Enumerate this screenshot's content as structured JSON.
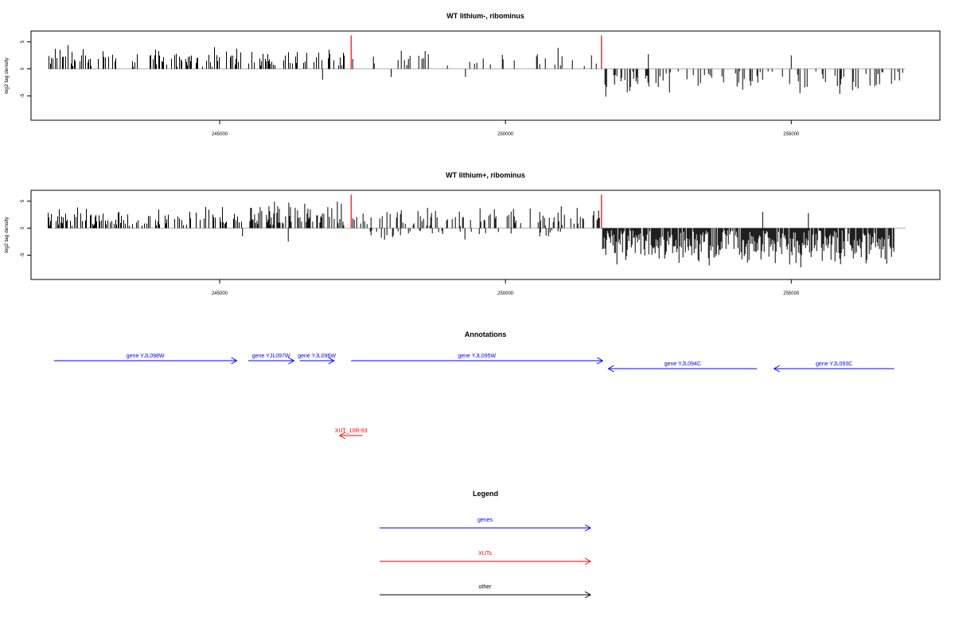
{
  "chart_data": [
    {
      "type": "bar",
      "title": "WT lithium-, ribominus",
      "xlabel": "",
      "ylabel": "log2 tag density",
      "xlim": [
        241700,
        257600
      ],
      "ylim": [
        -9.5,
        7
      ],
      "x_ticks": [
        245000,
        250000,
        255000
      ],
      "y_ticks": [
        -5,
        0,
        5
      ],
      "series": [
        {
          "segments": [
            {
              "from": 242000,
              "to": 246800,
              "sign": 1,
              "max": 4.5,
              "density": 0.32
            },
            {
              "from": 246900,
              "to": 247200,
              "sign": 1,
              "max": 4.2,
              "density": 0.25
            },
            {
              "from": 247300,
              "to": 251700,
              "sign": 1,
              "max": 4.0,
              "density": 0.1
            },
            {
              "from": 251700,
              "to": 257000,
              "sign": -1,
              "max": 5.5,
              "density": 0.24
            }
          ],
          "notable_negative": [
            {
              "x": 246800,
              "y": -2.0
            },
            {
              "x": 248000,
              "y": -1.5
            },
            {
              "x": 249300,
              "y": -1.5
            }
          ],
          "notable_positive": [
            {
              "x": 252500,
              "y": 2.7
            },
            {
              "x": 255000,
              "y": 2.5
            }
          ]
        }
      ],
      "highlights": [
        {
          "x": 247300,
          "y": 6.2,
          "color": "#ff0000"
        },
        {
          "x": 251680,
          "y": 6.2,
          "color": "#ff0000"
        }
      ]
    },
    {
      "type": "bar",
      "title": "WT lithium+, ribominus",
      "xlabel": "",
      "ylabel": "log2 tag density",
      "xlim": [
        241700,
        257600
      ],
      "ylim": [
        -9.5,
        7
      ],
      "x_ticks": [
        245000,
        250000,
        255000
      ],
      "y_ticks": [
        -5,
        0,
        5
      ],
      "series": [
        {
          "segments": [
            {
              "from": 242000,
              "to": 245400,
              "sign": 1,
              "max": 4.5,
              "density": 0.34
            },
            {
              "from": 245500,
              "to": 247200,
              "sign": 1,
              "max": 6.0,
              "density": 0.45
            },
            {
              "from": 247300,
              "to": 251700,
              "sign": 1,
              "max": 4.5,
              "density": 0.3
            },
            {
              "from": 247300,
              "to": 251000,
              "sign": -1,
              "max": 2.5,
              "density": 0.12
            },
            {
              "from": 251700,
              "to": 256800,
              "sign": -1,
              "max": 7.5,
              "density": 0.85
            }
          ],
          "notable_negative": [
            {
              "x": 245400,
              "y": -1.5
            },
            {
              "x": 246200,
              "y": -2.5
            }
          ],
          "notable_positive": [
            {
              "x": 254500,
              "y": 3.0
            },
            {
              "x": 255300,
              "y": 2.8
            }
          ]
        }
      ],
      "highlights": [
        {
          "x": 247300,
          "y": 6.2,
          "color": "#ff0000"
        },
        {
          "x": 251680,
          "y": 6.2,
          "color": "#ff0000"
        }
      ]
    }
  ],
  "annotations": {
    "title": "Annotations",
    "items": [
      {
        "label": "gene YJL098W",
        "start": 242100,
        "end": 245300,
        "strand": "+",
        "row": 0,
        "color": "#0000ff"
      },
      {
        "label": "gene YJL097W",
        "start": 245500,
        "end": 246300,
        "strand": "+",
        "row": 0,
        "color": "#0000ff"
      },
      {
        "label": "gene YJL096W",
        "start": 246400,
        "end": 247000,
        "strand": "+",
        "row": 0,
        "color": "#0000ff"
      },
      {
        "label": "gene YJL095W",
        "start": 247300,
        "end": 251700,
        "strand": "+",
        "row": 0,
        "color": "#0000ff"
      },
      {
        "label": "gene YJL094C",
        "start": 251800,
        "end": 254400,
        "strand": "-",
        "row": 1,
        "color": "#0000ff"
      },
      {
        "label": "gene YJL093C",
        "start": 254700,
        "end": 256800,
        "strand": "-",
        "row": 1,
        "color": "#0000ff"
      },
      {
        "label": "XUT_10R-93",
        "start": 247100,
        "end": 247500,
        "strand": "-",
        "row": 2,
        "color": "#ff0000"
      }
    ]
  },
  "legend": {
    "title": "Legend",
    "items": [
      {
        "label": "genes",
        "color": "#0000ff"
      },
      {
        "label": "XUTs",
        "color": "#ff0000"
      },
      {
        "label": "other",
        "color": "#000000"
      }
    ]
  }
}
